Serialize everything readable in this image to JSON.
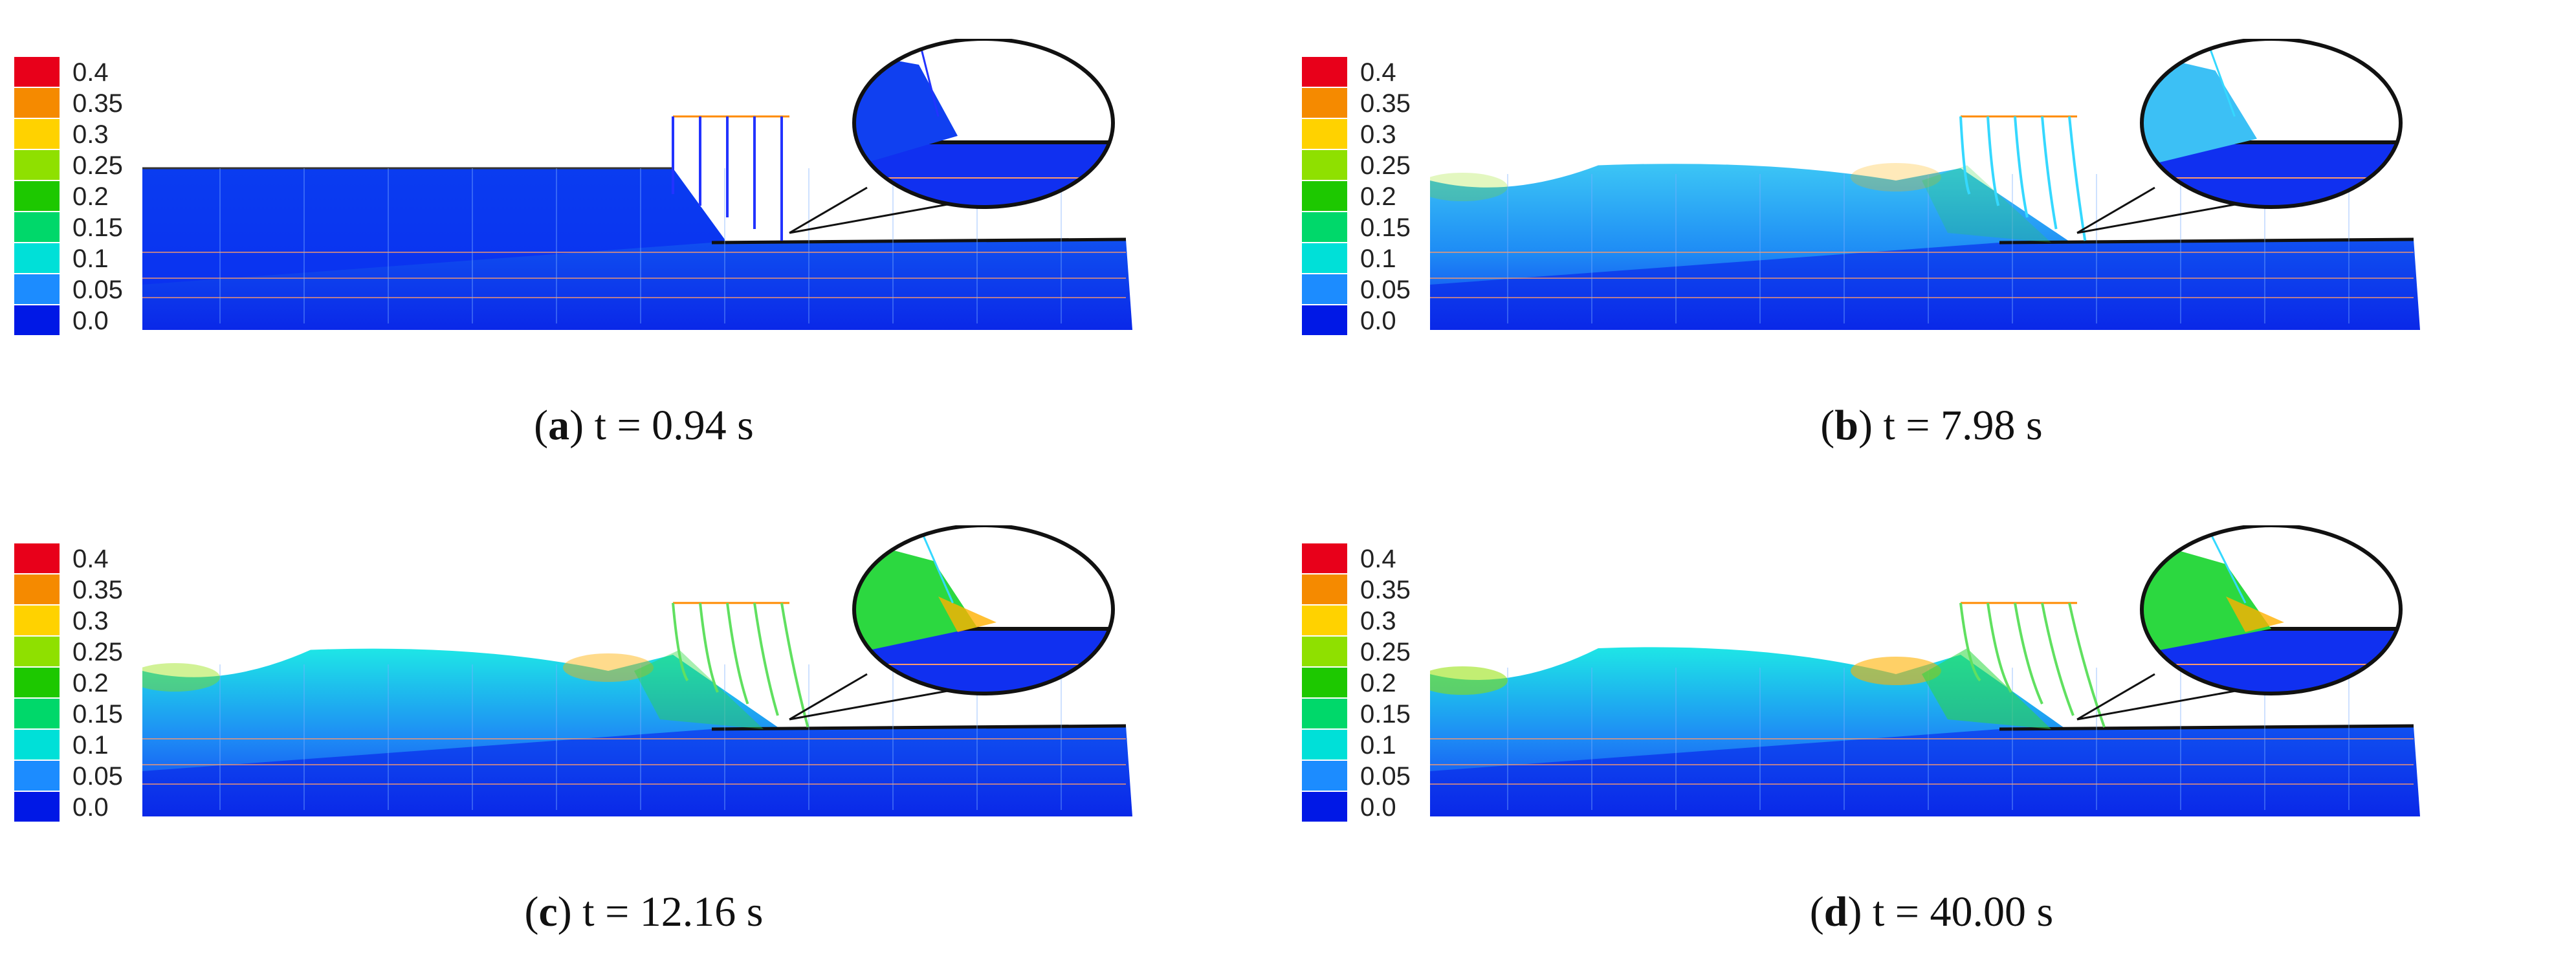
{
  "colorbar": {
    "ticks": [
      "0.4",
      "0.35",
      "0.3",
      "0.25",
      "0.2",
      "0.15",
      "0.1",
      "0.05",
      "0.0"
    ],
    "colors": [
      "#e8001a",
      "#f58a00",
      "#ffd200",
      "#8fe000",
      "#1dc800",
      "#00d86a",
      "#00e0d8",
      "#1c8cff",
      "#0018e6"
    ]
  },
  "panels": [
    {
      "letter": "a",
      "time": "t = 0.94 s"
    },
    {
      "letter": "b",
      "time": "t = 7.98 s"
    },
    {
      "letter": "c",
      "time": "t = 12.16 s"
    },
    {
      "letter": "d",
      "time": "t = 40.00 s"
    }
  ]
}
